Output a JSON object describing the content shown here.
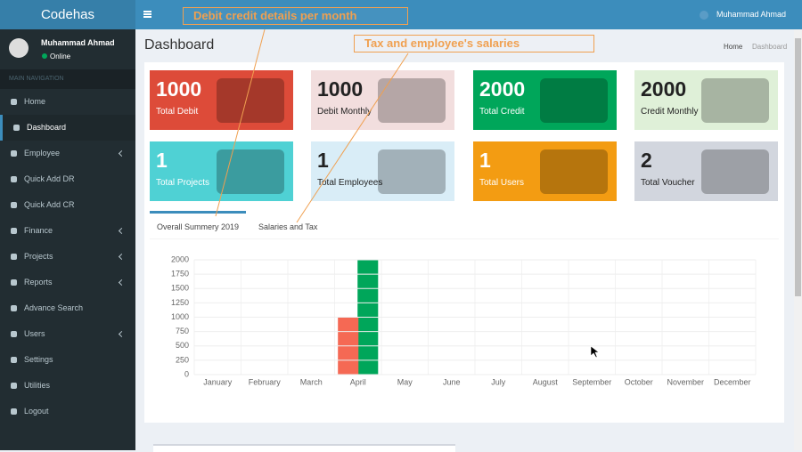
{
  "header": {
    "brand": "Codehas",
    "user": "Muhammad Ahmad"
  },
  "sidebar": {
    "user": "Muhammad Ahmad",
    "status": "Online",
    "section": "MAIN NAVIGATION",
    "items": [
      {
        "label": "Home",
        "submenu": false
      },
      {
        "label": "Dashboard",
        "submenu": false,
        "active": true
      },
      {
        "label": "Employee",
        "submenu": true
      },
      {
        "label": "Quick Add DR",
        "submenu": false
      },
      {
        "label": "Quick Add CR",
        "submenu": false
      },
      {
        "label": "Finance",
        "submenu": true
      },
      {
        "label": "Projects",
        "submenu": true
      },
      {
        "label": "Reports",
        "submenu": true
      },
      {
        "label": "Advance Search",
        "submenu": false
      },
      {
        "label": "Users",
        "submenu": true
      },
      {
        "label": "Settings",
        "submenu": false
      },
      {
        "label": "Utilities",
        "submenu": false
      },
      {
        "label": "Logout",
        "submenu": false
      }
    ]
  },
  "page": {
    "title": "Dashboard",
    "breadcrumb": [
      "Home",
      "Dashboard"
    ]
  },
  "annotations": [
    "Debit credit details per month",
    "Tax and employee's salaries"
  ],
  "cards": [
    {
      "value": 1000,
      "label": "Total Debit",
      "color": "#dd4b39",
      "text_color": "#ffffff"
    },
    {
      "value": 1000,
      "label": "Debit Monthly",
      "color": "#f2dede",
      "text_color": "#222222"
    },
    {
      "value": 2000,
      "label": "Total Credit",
      "color": "#00a65a",
      "text_color": "#ffffff"
    },
    {
      "value": 2000,
      "label": "Credit Monthly",
      "color": "#dff0d8",
      "text_color": "#222222"
    },
    {
      "value": 1,
      "label": "Total Projects",
      "color": "#4fd1d4",
      "text_color": "#ffffff"
    },
    {
      "value": 1,
      "label": "Total Employees",
      "color": "#d9edf7",
      "text_color": "#222222"
    },
    {
      "value": 1,
      "label": "Total Users",
      "color": "#f39c12",
      "text_color": "#ffffff"
    },
    {
      "value": 2,
      "label": "Total Voucher",
      "color": "#d2d6de",
      "text_color": "#222222"
    }
  ],
  "tabs": [
    "Overall Summery 2019",
    "Salaries and Tax"
  ],
  "chart_data": {
    "type": "bar",
    "categories": [
      "January",
      "February",
      "March",
      "April",
      "May",
      "June",
      "July",
      "August",
      "September",
      "October",
      "November",
      "December"
    ],
    "series": [
      {
        "color": "#f56954",
        "values": [
          0,
          0,
          0,
          1000,
          0,
          0,
          0,
          0,
          0,
          0,
          0,
          0
        ]
      },
      {
        "color": "#00a65a",
        "values": [
          0,
          0,
          0,
          2000,
          0,
          0,
          0,
          0,
          0,
          0,
          0,
          0
        ]
      }
    ],
    "ylim": [
      0,
      2000
    ],
    "yticks": [
      0,
      250,
      500,
      750,
      1000,
      1250,
      1500,
      1750,
      2000
    ],
    "grid": true
  }
}
